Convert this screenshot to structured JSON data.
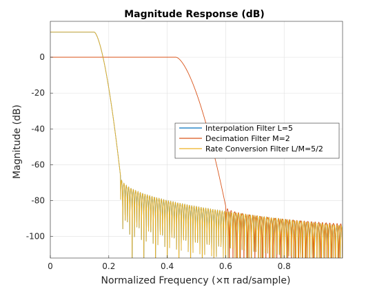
{
  "chart_data": {
    "type": "line",
    "title": "Magnitude Response (dB)",
    "xlabel": "Normalized Frequency (×π rad/sample)",
    "ylabel": "Magnitude (dB)",
    "xlim": [
      0,
      1
    ],
    "ylim": [
      -112,
      20
    ],
    "xticks": [
      0,
      0.2,
      0.4,
      0.6,
      0.8
    ],
    "xtick_labels": [
      "0",
      "0.2",
      "0.4",
      "0.6",
      "0.8"
    ],
    "yticks": [
      -100,
      -80,
      -60,
      -40,
      -20,
      0
    ],
    "ytick_labels": [
      "-100",
      "-80",
      "-60",
      "-40",
      "-20",
      "0"
    ],
    "grid": true,
    "legend_position": "center-right",
    "series": [
      {
        "name": "Interpolation Filter L=5",
        "color": "#0072BD",
        "passband_gain_db": 14,
        "passband_edge": 0.15,
        "stopband_edge": 0.24,
        "stopband_level_db_start": -66,
        "stopband_level_db_end": -94
      },
      {
        "name": "Decimation Filter M=2",
        "color": "#D95319",
        "passband_gain_db": 0,
        "passband_edge": 0.43,
        "stopband_edge": 0.6,
        "stopband_level_db_start": -83,
        "stopband_level_db_end": -93
      },
      {
        "name": "Rate Conversion Filter L/M=5/2",
        "color": "#EDB120",
        "passband_gain_db": 14,
        "passband_edge": 0.15,
        "stopband_edge": 0.24,
        "stopband_level_db_start": -66,
        "stopband_level_db_end": -94
      }
    ]
  }
}
